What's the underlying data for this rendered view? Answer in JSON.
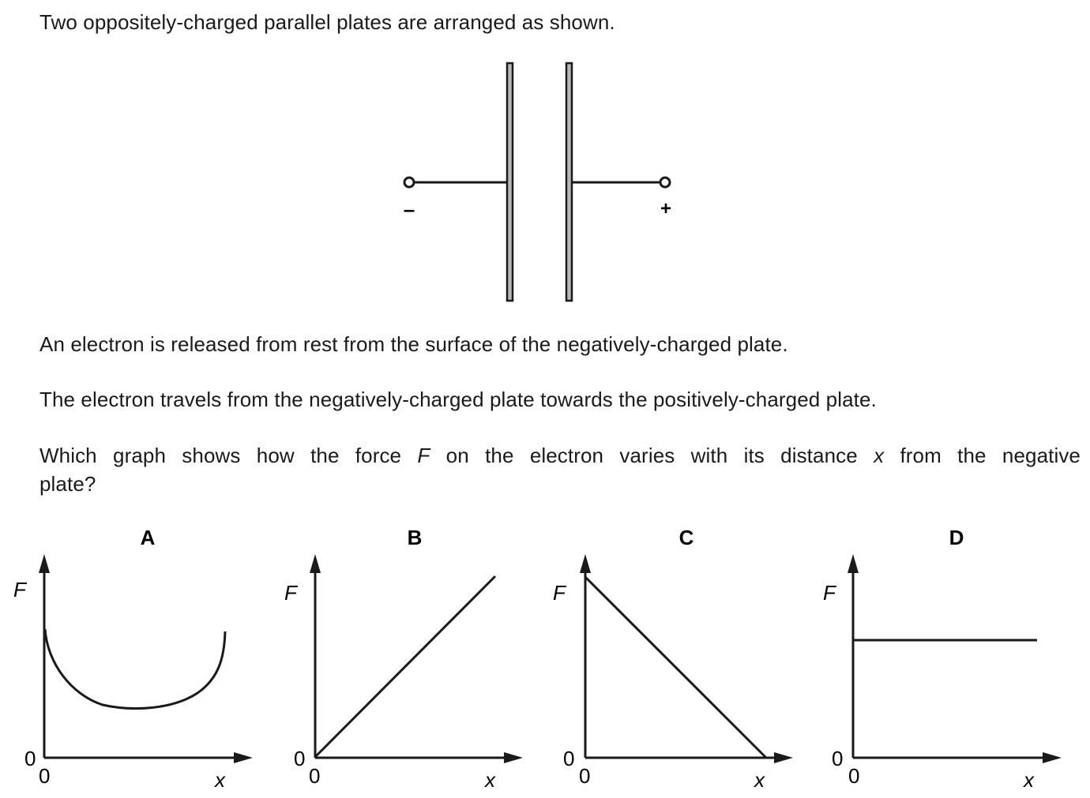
{
  "question": {
    "intro": "Two oppositely-charged parallel plates are arranged as shown.",
    "release": "An electron is released from rest from the surface of the negatively-charged plate.",
    "travel": "The electron travels from the negatively-charged plate towards the positively-charged plate.",
    "prompt_part1": "Which graph shows how the force ",
    "prompt_F": "F",
    "prompt_part2": " on the electron varies with its distance ",
    "prompt_x": "x",
    "prompt_part3": " from the negative",
    "prompt_line2": "plate?"
  },
  "diagram": {
    "negative_terminal": "–",
    "positive_terminal": "+"
  },
  "options": [
    {
      "letter": "A",
      "y_label": "F",
      "x_label": "x",
      "origin_y": "0",
      "origin_x": "0",
      "shape": "u-curve"
    },
    {
      "letter": "B",
      "y_label": "F",
      "x_label": "x",
      "origin_y": "0",
      "origin_x": "0",
      "shape": "increasing-line"
    },
    {
      "letter": "C",
      "y_label": "F",
      "x_label": "x",
      "origin_y": "0",
      "origin_x": "0",
      "shape": "decreasing-line"
    },
    {
      "letter": "D",
      "y_label": "F",
      "x_label": "x",
      "origin_y": "0",
      "origin_x": "0",
      "shape": "constant-line"
    }
  ]
}
